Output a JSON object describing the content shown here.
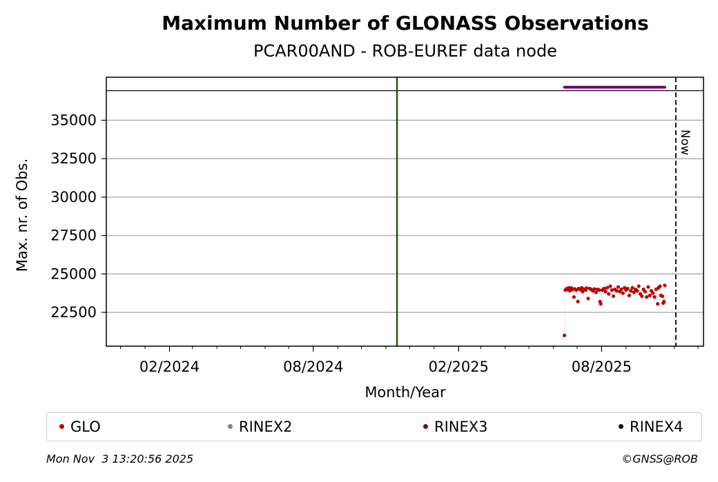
{
  "chart_data": {
    "type": "scatter",
    "title": "Maximum Number of GLONASS Observations",
    "subtitle": "PCAR00AND - ROB-EUREF data node",
    "xlabel": "Month/Year",
    "ylabel": "Max. nr. of Obs.",
    "x_range": [
      "2023-11-13",
      "2025-12-08"
    ],
    "ylim": [
      20300,
      37800
    ],
    "yticks": [
      22500,
      25000,
      27500,
      30000,
      32500,
      35000
    ],
    "ytick_labels": [
      "22500",
      "25000",
      "27500",
      "30000",
      "32500",
      "35000"
    ],
    "xticks": [
      "2024-02-01",
      "2024-08-01",
      "2025-02-01",
      "2025-08-01"
    ],
    "xtick_labels": [
      "02/2024",
      "08/2024",
      "02/2025",
      "08/2025"
    ],
    "grid": "y",
    "upper_band_y": 37150,
    "event_line": {
      "x": "2024-11-15",
      "colors": [
        "#006400",
        "#cc0000"
      ]
    },
    "now_line": {
      "x": "2025-11-03",
      "label": "Now"
    },
    "series": [
      {
        "name": "GLO",
        "color": "#bb0000",
        "points": [
          [
            "2025-06-15",
            21000
          ],
          [
            "2025-06-16",
            23950
          ],
          [
            "2025-06-18",
            24050
          ],
          [
            "2025-06-19",
            23980
          ],
          [
            "2025-06-21",
            24100
          ],
          [
            "2025-06-22",
            23900
          ],
          [
            "2025-06-24",
            24080
          ],
          [
            "2025-06-25",
            24000
          ],
          [
            "2025-06-27",
            23500
          ],
          [
            "2025-06-28",
            24020
          ],
          [
            "2025-06-30",
            23950
          ],
          [
            "2025-07-02",
            23200
          ],
          [
            "2025-07-03",
            24050
          ],
          [
            "2025-07-05",
            23980
          ],
          [
            "2025-07-07",
            24100
          ],
          [
            "2025-07-08",
            23850
          ],
          [
            "2025-07-10",
            24000
          ],
          [
            "2025-07-12",
            23950
          ],
          [
            "2025-07-13",
            24080
          ],
          [
            "2025-07-15",
            23400
          ],
          [
            "2025-07-17",
            24050
          ],
          [
            "2025-07-19",
            23980
          ],
          [
            "2025-07-21",
            23900
          ],
          [
            "2025-07-23",
            24020
          ],
          [
            "2025-07-25",
            23800
          ],
          [
            "2025-07-27",
            24000
          ],
          [
            "2025-07-29",
            23950
          ],
          [
            "2025-07-30",
            23200
          ],
          [
            "2025-07-31",
            23050
          ],
          [
            "2025-08-02",
            23950
          ],
          [
            "2025-08-04",
            24050
          ],
          [
            "2025-08-06",
            23850
          ],
          [
            "2025-08-08",
            24100
          ],
          [
            "2025-08-10",
            23700
          ],
          [
            "2025-08-12",
            24200
          ],
          [
            "2025-08-14",
            23950
          ],
          [
            "2025-08-16",
            23550
          ],
          [
            "2025-08-18",
            24000
          ],
          [
            "2025-08-20",
            23900
          ],
          [
            "2025-08-22",
            24150
          ],
          [
            "2025-08-24",
            23850
          ],
          [
            "2025-08-26",
            24000
          ],
          [
            "2025-08-28",
            23750
          ],
          [
            "2025-08-30",
            24100
          ],
          [
            "2025-09-01",
            23950
          ],
          [
            "2025-09-03",
            24050
          ],
          [
            "2025-09-05",
            23600
          ],
          [
            "2025-09-07",
            23900
          ],
          [
            "2025-09-09",
            24100
          ],
          [
            "2025-09-11",
            23800
          ],
          [
            "2025-09-13",
            24000
          ],
          [
            "2025-09-15",
            23900
          ],
          [
            "2025-09-17",
            24200
          ],
          [
            "2025-09-19",
            23700
          ],
          [
            "2025-09-21",
            23550
          ],
          [
            "2025-09-23",
            24000
          ],
          [
            "2025-09-25",
            23850
          ],
          [
            "2025-09-27",
            23500
          ],
          [
            "2025-09-29",
            24150
          ],
          [
            "2025-10-01",
            23600
          ],
          [
            "2025-10-03",
            23900
          ],
          [
            "2025-10-05",
            23750
          ],
          [
            "2025-10-07",
            23500
          ],
          [
            "2025-10-09",
            24000
          ],
          [
            "2025-10-11",
            23050
          ],
          [
            "2025-10-12",
            24100
          ],
          [
            "2025-10-14",
            24200
          ],
          [
            "2025-10-15",
            23600
          ],
          [
            "2025-10-17",
            23550
          ],
          [
            "2025-10-18",
            23100
          ],
          [
            "2025-10-19",
            23200
          ],
          [
            "2025-10-20",
            24250
          ]
        ]
      },
      {
        "name": "RINEX2",
        "color": "#7b7bbb",
        "points": []
      },
      {
        "name": "RINEX3",
        "color": "#6a0068",
        "line_from": "2025-06-15",
        "line_to": "2025-10-20",
        "value": 37150
      },
      {
        "name": "RINEX4",
        "color": "#1a0020",
        "points": []
      }
    ]
  },
  "legend": [
    {
      "label": "GLO",
      "color": "#bb0000"
    },
    {
      "label": "RINEX2",
      "color": "#7b7bbb"
    },
    {
      "label": "RINEX3",
      "color": "#6a0068"
    },
    {
      "label": "RINEX4",
      "color": "#1a0020"
    }
  ],
  "footer": {
    "timestamp": "Mon Nov  3 13:20:56 2025",
    "credit": "©GNSS@ROB"
  }
}
